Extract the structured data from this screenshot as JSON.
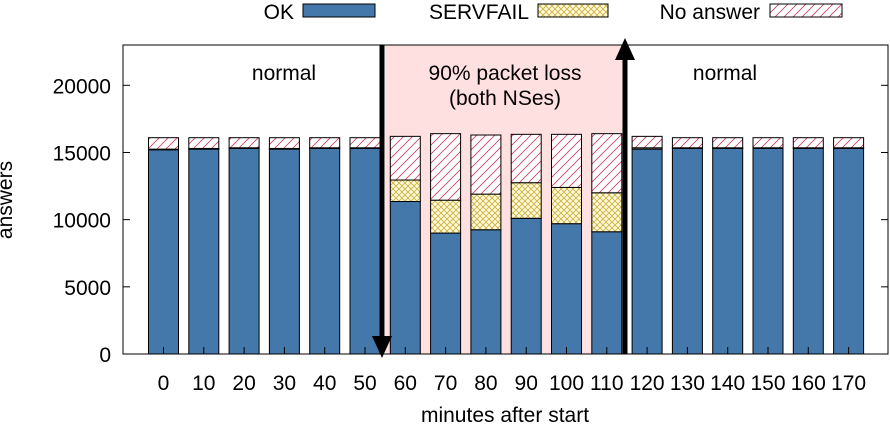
{
  "chart_data": {
    "type": "bar",
    "stacked": true,
    "xlabel": "minutes after start",
    "ylabel": "answers",
    "ylim": [
      0,
      23000
    ],
    "y_ticks": [
      0,
      5000,
      10000,
      15000,
      20000
    ],
    "categories": [
      "0",
      "10",
      "20",
      "30",
      "40",
      "50",
      "60",
      "70",
      "80",
      "90",
      "100",
      "110",
      "120",
      "130",
      "140",
      "150",
      "160",
      "170"
    ],
    "series": [
      {
        "name": "OK",
        "color": "#4477aa",
        "pattern": "solid",
        "values": [
          15200,
          15250,
          15300,
          15250,
          15300,
          15300,
          11350,
          9000,
          9250,
          10100,
          9700,
          9100,
          15250,
          15300,
          15300,
          15300,
          15300,
          15300
        ]
      },
      {
        "name": "SERVFAIL",
        "color": "#c8b040",
        "pattern": "crosshatch",
        "values": [
          50,
          50,
          50,
          50,
          50,
          50,
          1600,
          2450,
          2650,
          2650,
          2700,
          2900,
          100,
          50,
          50,
          50,
          50,
          50
        ]
      },
      {
        "name": "No answer",
        "color": "#d04060",
        "pattern": "diagonal",
        "values": [
          850,
          800,
          750,
          800,
          750,
          750,
          3250,
          4950,
          4400,
          3600,
          3950,
          4400,
          850,
          750,
          750,
          750,
          750,
          750
        ]
      }
    ],
    "legend_position": "top",
    "annotations": {
      "normal_left": "normal",
      "loss_line1": "90% packet loss",
      "loss_line2": "(both NSes)",
      "normal_right": "normal"
    },
    "shaded_region": {
      "from_category": "60",
      "to_category": "110",
      "color": "#ffe0e0"
    },
    "arrows": [
      {
        "at": "between 50 and 60",
        "direction": "down"
      },
      {
        "at": "between 110 and 120",
        "direction": "up"
      }
    ]
  }
}
